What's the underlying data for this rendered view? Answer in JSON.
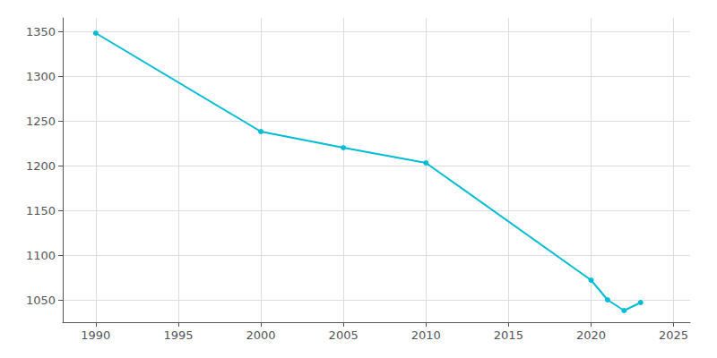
{
  "chart_data": {
    "type": "line",
    "x": [
      1990,
      2000,
      2005,
      2010,
      2020,
      2021,
      2022,
      2023
    ],
    "values": [
      1348,
      1238,
      1220,
      1203,
      1072,
      1050,
      1038,
      1047
    ],
    "color": "#00BCD4",
    "marker": "circle",
    "xlim": [
      1988,
      2026
    ],
    "ylim": [
      1025,
      1365
    ],
    "xticks": [
      1990,
      1995,
      2000,
      2005,
      2010,
      2015,
      2020,
      2025
    ],
    "yticks": [
      1050,
      1100,
      1150,
      1200,
      1250,
      1300,
      1350
    ],
    "grid": true
  }
}
